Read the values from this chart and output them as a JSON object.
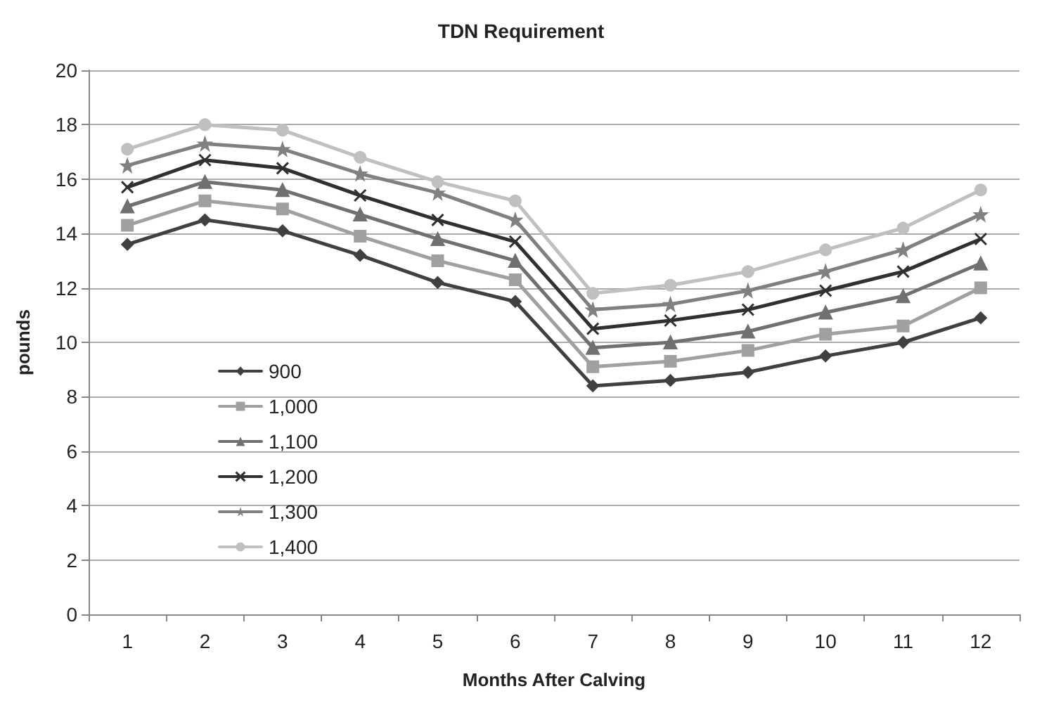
{
  "chart_data": {
    "type": "line",
    "title": "TDN Requirement",
    "xlabel": "Months After Calving",
    "ylabel": "pounds",
    "categories": [
      "1",
      "2",
      "3",
      "4",
      "5",
      "6",
      "7",
      "8",
      "9",
      "10",
      "11",
      "12"
    ],
    "series": [
      {
        "name": "900",
        "color": "#404040",
        "marker": "diamond",
        "values": [
          13.6,
          14.5,
          14.1,
          13.2,
          12.2,
          11.5,
          8.4,
          8.6,
          8.9,
          9.5,
          10.0,
          10.9
        ]
      },
      {
        "name": "1,000",
        "color": "#a0a0a0",
        "marker": "square",
        "values": [
          14.3,
          15.2,
          14.9,
          13.9,
          13.0,
          12.3,
          9.1,
          9.3,
          9.7,
          10.3,
          10.6,
          12.0
        ]
      },
      {
        "name": "1,100",
        "color": "#707070",
        "marker": "triangle",
        "values": [
          15.0,
          15.9,
          15.6,
          14.7,
          13.8,
          13.0,
          9.8,
          10.0,
          10.4,
          11.1,
          11.7,
          12.9
        ]
      },
      {
        "name": "1,200",
        "color": "#303030",
        "marker": "cross",
        "values": [
          15.7,
          16.7,
          16.4,
          15.4,
          14.5,
          13.7,
          10.5,
          10.8,
          11.2,
          11.9,
          12.6,
          13.8
        ]
      },
      {
        "name": "1,300",
        "color": "#808080",
        "marker": "star",
        "values": [
          16.5,
          17.3,
          17.1,
          16.2,
          15.5,
          14.5,
          11.2,
          11.4,
          11.9,
          12.6,
          13.4,
          14.7
        ]
      },
      {
        "name": "1,400",
        "color": "#c0c0c0",
        "marker": "circle",
        "values": [
          17.1,
          18.0,
          17.8,
          16.8,
          15.9,
          15.2,
          11.8,
          12.1,
          12.6,
          13.4,
          14.2,
          15.6
        ]
      }
    ],
    "ylim": [
      0,
      20
    ],
    "yticks": [
      0,
      2,
      4,
      6,
      8,
      10,
      12,
      14,
      16,
      18,
      20
    ],
    "grid": "y",
    "legend": "left"
  }
}
